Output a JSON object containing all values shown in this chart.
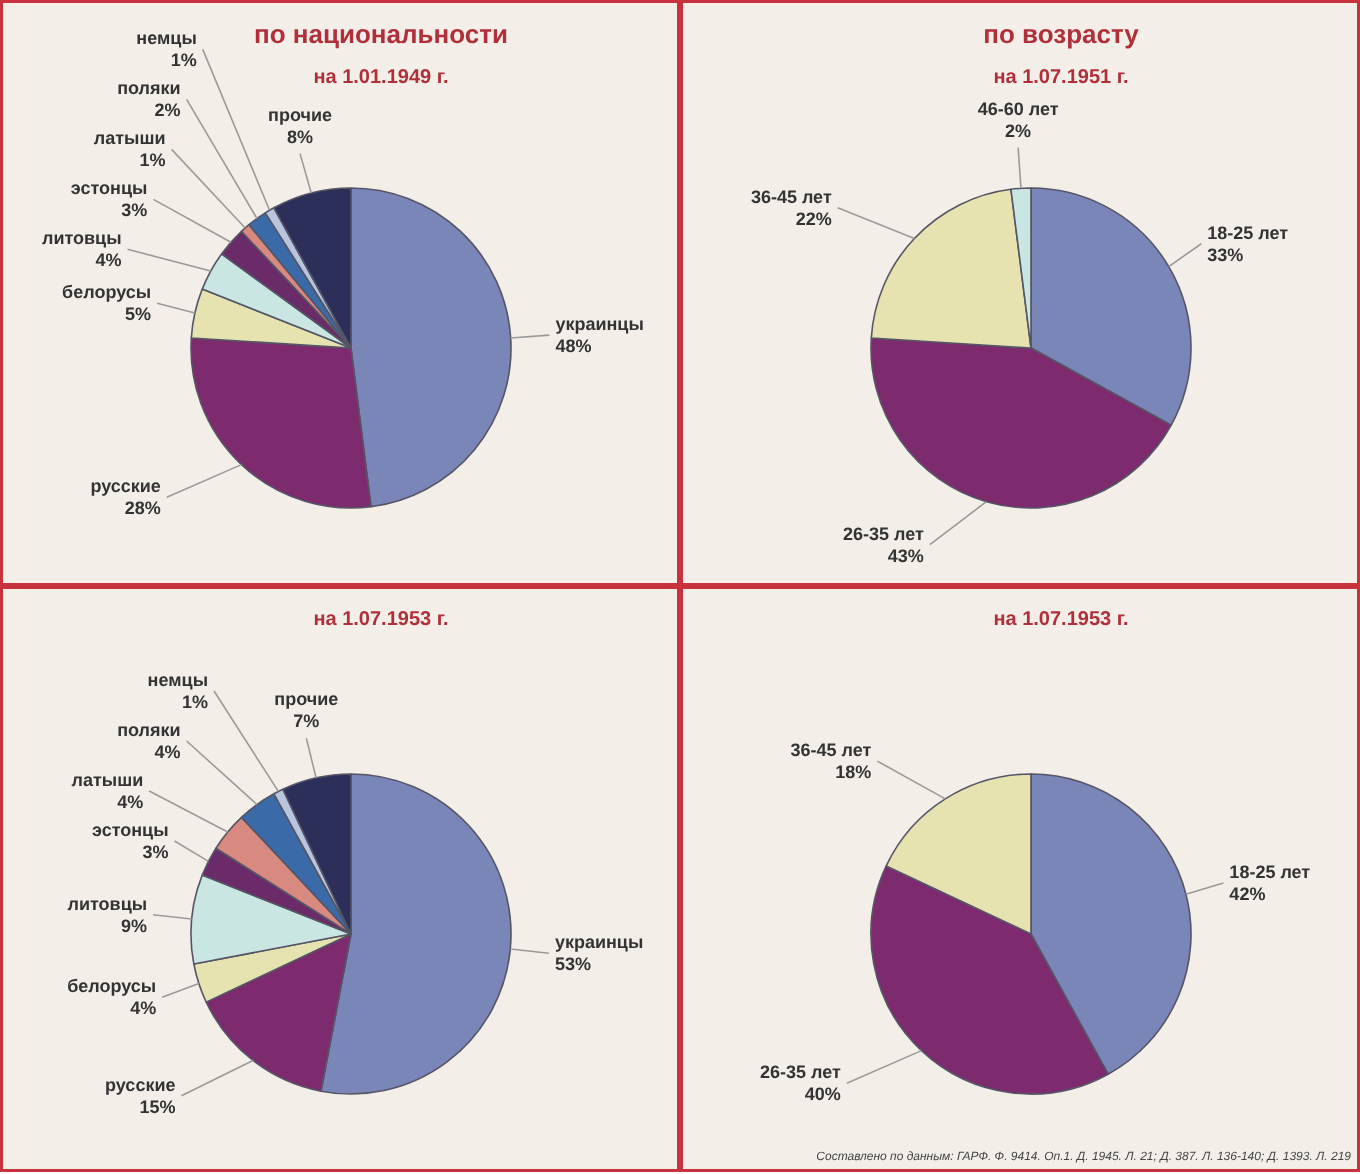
{
  "chart_data": [
    {
      "type": "pie",
      "title": "по национальности",
      "subtitle": "на 1.01.1949 г.",
      "categories": [
        "украинцы",
        "русские",
        "белорусы",
        "литовцы",
        "эстонцы",
        "латыши",
        "поляки",
        "немцы",
        "прочие"
      ],
      "values": [
        48,
        28,
        5,
        4,
        3,
        1,
        2,
        1,
        8
      ],
      "value_labels": [
        "48%",
        "28%",
        "5%",
        "4%",
        "3%",
        "1%",
        "2%",
        "1%",
        "8%"
      ],
      "colors": [
        "#7b86b8",
        "#7e2a6e",
        "#e6e3b0",
        "#c9e6e3",
        "#6b2a68",
        "#d98a80",
        "#3a6aa8",
        "#b9c4df",
        "#2b2f5a"
      ]
    },
    {
      "type": "pie",
      "title": "по возрасту",
      "subtitle": "на 1.07.1951 г.",
      "categories": [
        "18-25 лет",
        "26-35 лет",
        "36-45 лет",
        "46-60 лет"
      ],
      "values": [
        33,
        43,
        22,
        2
      ],
      "value_labels": [
        "33%",
        "43%",
        "22%",
        "2%"
      ],
      "colors": [
        "#7b86b8",
        "#7e2a6e",
        "#e6e3b0",
        "#c9e6e3"
      ]
    },
    {
      "type": "pie",
      "subtitle": "на 1.07.1953 г.",
      "categories": [
        "украинцы",
        "русские",
        "белорусы",
        "литовцы",
        "эстонцы",
        "латыши",
        "поляки",
        "немцы",
        "прочие"
      ],
      "values": [
        53,
        15,
        4,
        9,
        3,
        4,
        4,
        1,
        7
      ],
      "value_labels": [
        "53%",
        "15%",
        "4%",
        "9%",
        "3%",
        "4%",
        "4%",
        "1%",
        "7%"
      ],
      "colors": [
        "#7b86b8",
        "#7e2a6e",
        "#e6e3b0",
        "#c9e6e3",
        "#6b2a68",
        "#d98a80",
        "#3a6aa8",
        "#b9c4df",
        "#2b2f5a"
      ]
    },
    {
      "type": "pie",
      "subtitle": "на 1.07.1953 г.",
      "categories": [
        "18-25 лет",
        "26-35 лет",
        "36-45 лет"
      ],
      "values": [
        42,
        40,
        18
      ],
      "value_labels": [
        "42%",
        "40%",
        "18%"
      ],
      "colors": [
        "#7b86b8",
        "#7e2a6e",
        "#e6e3b0"
      ],
      "annotations": [
        "Составлено по данным: ГАРФ. Ф. 9414. Оп.1. Д. 1945. Л. 21; Д. 387. Л. 136-140; Д. 1393. Л. 219"
      ]
    }
  ]
}
